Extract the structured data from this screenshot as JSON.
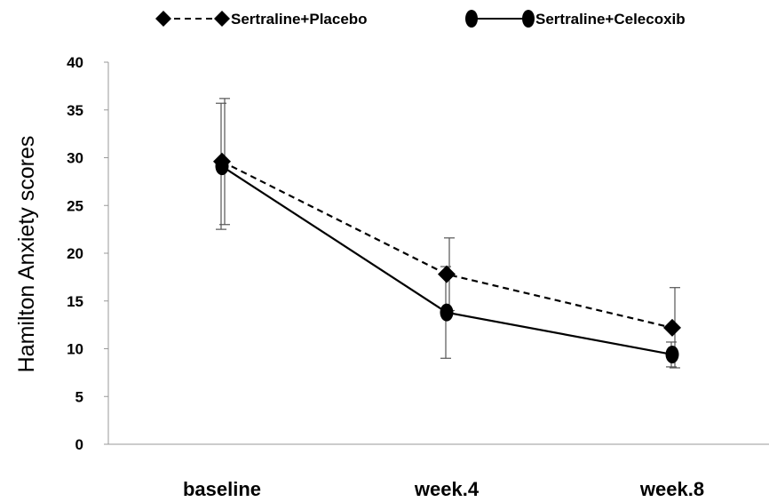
{
  "chart_data": {
    "type": "line",
    "categories": [
      "baseline",
      "week.4",
      "week.8"
    ],
    "ylabel": "Hamilton Anxiety scores",
    "xlabel": "",
    "ylim": [
      0,
      40
    ],
    "yticks": [
      "0",
      "5",
      "10",
      "15",
      "20",
      "25",
      "30",
      "35",
      "40"
    ],
    "legend_position": "top",
    "grid": false,
    "series": [
      {
        "name": "Sertraline+Placebo",
        "marker": "diamond",
        "line_style": "dashed",
        "color": "#000000",
        "values": [
          29.6,
          17.8,
          12.2
        ],
        "error": [
          6.6,
          3.8,
          4.2
        ]
      },
      {
        "name": "Sertraline+Celecoxib",
        "marker": "ellipse",
        "line_style": "solid",
        "color": "#000000",
        "values": [
          29.1,
          13.8,
          9.4
        ],
        "error": [
          6.6,
          4.8,
          1.3
        ]
      }
    ]
  }
}
